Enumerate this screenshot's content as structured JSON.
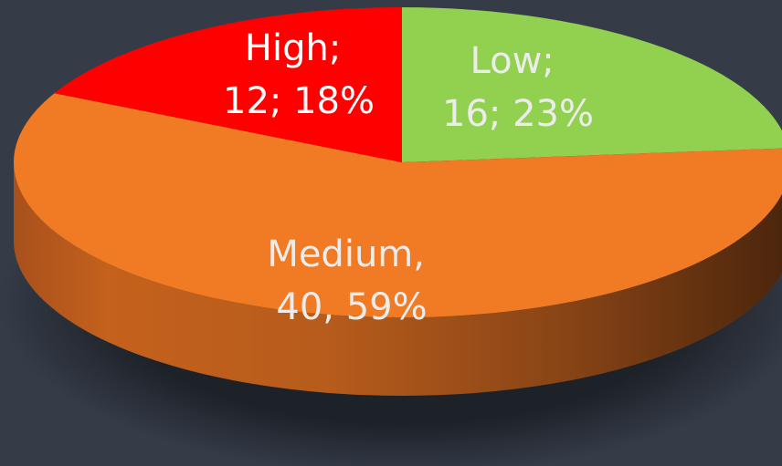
{
  "chart_data": {
    "type": "pie",
    "style": "3d",
    "background": "#353c48",
    "slices": [
      {
        "category": "Low",
        "value": 16,
        "percent": 23,
        "color": "#92d050",
        "label_line1": "Low;",
        "label_line2": "16; 23%"
      },
      {
        "category": "Medium",
        "value": 40,
        "percent": 59,
        "color": "#f07b24",
        "label_line1": "Medium,",
        "label_line2": "40, 59%"
      },
      {
        "category": "High",
        "value": 12,
        "percent": 18,
        "color": "#ff0000",
        "label_line1": "High;",
        "label_line2": "12; 18%"
      }
    ]
  }
}
